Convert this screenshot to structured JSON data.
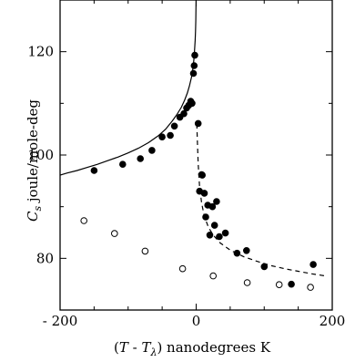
{
  "chart_data": {
    "type": "scatter",
    "title": "",
    "xlabel": "(T - T_λ) nanodegrees K",
    "ylabel": "C_s joule/mole-deg",
    "xlim": [
      -200,
      200
    ],
    "ylim": [
      70,
      130
    ],
    "xticks": [
      -200,
      0,
      200
    ],
    "yticks": [
      80,
      100,
      120
    ],
    "xtick_labels": [
      "- 200",
      "0",
      "200"
    ],
    "ytick_labels": [
      "80",
      "100",
      "120"
    ],
    "grid": false,
    "legend": "none",
    "series": [
      {
        "marker": "filled-circle",
        "color": "#000000",
        "points": [
          [
            -150,
            97.0
          ],
          [
            -108,
            98.2
          ],
          [
            -82,
            99.3
          ],
          [
            -65,
            100.9
          ],
          [
            -50,
            103.5
          ],
          [
            -38,
            103.8
          ],
          [
            -32,
            105.6
          ],
          [
            -24,
            107.3
          ],
          [
            -18,
            108.0
          ],
          [
            -14,
            109.1
          ],
          [
            -11,
            109.6
          ],
          [
            -8,
            110.4
          ],
          [
            -6,
            110.0
          ],
          [
            -4,
            115.8
          ],
          [
            -3,
            117.3
          ],
          [
            -2,
            119.3
          ],
          [
            3,
            106.1
          ],
          [
            5,
            93.0
          ],
          [
            8,
            96.2
          ],
          [
            9,
            96.1
          ],
          [
            12,
            92.6
          ],
          [
            14,
            88.0
          ],
          [
            17,
            90.3
          ],
          [
            20,
            84.5
          ],
          [
            24,
            90.0
          ],
          [
            27,
            86.4
          ],
          [
            30,
            91.0
          ],
          [
            34,
            84.2
          ],
          [
            43,
            84.9
          ],
          [
            60,
            81.0
          ],
          [
            74,
            81.5
          ],
          [
            100,
            78.4
          ],
          [
            140,
            75.0
          ],
          [
            172,
            78.8
          ]
        ]
      },
      {
        "marker": "open-circle",
        "color": "#000000",
        "points": [
          [
            -165,
            87.3
          ],
          [
            -120,
            84.8
          ],
          [
            -75,
            81.4
          ],
          [
            -20,
            78.0
          ],
          [
            25,
            76.6
          ],
          [
            75,
            75.3
          ],
          [
            122,
            74.9
          ],
          [
            168,
            74.4
          ]
        ]
      }
    ],
    "curves": [
      {
        "style": "solid",
        "x": [
          -200,
          -190,
          -175,
          -160,
          -145,
          -130,
          -115,
          -100,
          -85,
          -70,
          -55,
          -45,
          -35,
          -28,
          -22,
          -17,
          -13,
          -10,
          -7,
          -5,
          -3.5,
          -2.5,
          -1.5,
          -1,
          -0.6,
          -0.3,
          -0.1
        ],
        "y": [
          96.1,
          96.5,
          97.0,
          97.6,
          98.2,
          98.9,
          99.6,
          100.4,
          101.3,
          102.4,
          103.8,
          105.0,
          106.6,
          107.9,
          109.2,
          110.6,
          112.0,
          113.3,
          115.0,
          116.6,
          118.3,
          119.9,
          122.2,
          124.0,
          126.0,
          128.6,
          131.5
        ]
      },
      {
        "style": "dashed",
        "x": [
          1,
          2,
          3,
          5,
          8,
          12,
          18,
          25,
          35,
          50,
          70,
          90,
          110,
          130,
          150,
          170,
          190
        ],
        "y": [
          106.0,
          101.8,
          98.4,
          94.0,
          90.7,
          88.1,
          86.0,
          84.5,
          83.0,
          81.6,
          80.3,
          79.4,
          78.6,
          78.0,
          77.5,
          77.0,
          76.6
        ]
      }
    ]
  }
}
